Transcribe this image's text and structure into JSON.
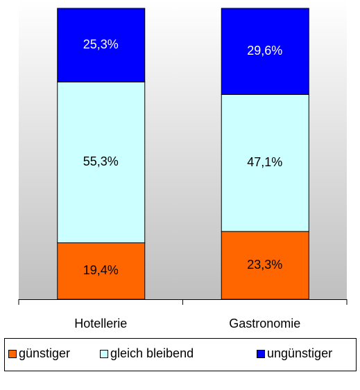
{
  "chart_data": {
    "type": "stacked_bar",
    "categories": [
      "Hotellerie",
      "Gastronomie"
    ],
    "series": [
      {
        "name": "günstiger",
        "color": "#ff6600",
        "text_color": "#000000",
        "values": [
          19.4,
          23.3
        ],
        "value_labels": [
          "19,4%",
          "23,3%"
        ]
      },
      {
        "name": "gleich bleibend",
        "color": "#ccffff",
        "text_color": "#000000",
        "values": [
          55.3,
          47.1
        ],
        "value_labels": [
          "55,3%",
          "47,1%"
        ]
      },
      {
        "name": "ungünstiger",
        "color": "#0000ff",
        "text_color": "#ffffff",
        "values": [
          25.3,
          29.6
        ],
        "value_labels": [
          "25,3%",
          "29,6%"
        ]
      }
    ],
    "ylim": [
      0,
      100
    ],
    "legend": "bottom"
  }
}
